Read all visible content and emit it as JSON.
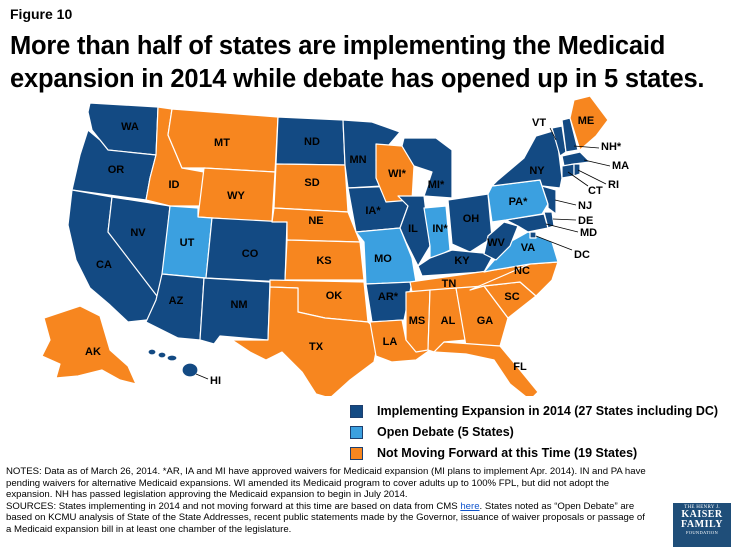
{
  "figure_label": "Figure 10",
  "title": "More than half of states are implementing the Medicaid expansion in 2014 while debate has opened up in 5 states.",
  "colors": {
    "implementing": "#134a83",
    "open_debate": "#3ba0e0",
    "not_moving": "#f7861f",
    "border": "#ffffff",
    "text": "#000000"
  },
  "legend": [
    {
      "label": "Implementing Expansion in 2014 (27 States including DC)",
      "color": "#134a83"
    },
    {
      "label": "Open Debate (5 States)",
      "color": "#3ba0e0"
    },
    {
      "label": "Not Moving Forward at this Time (19 States)",
      "color": "#f7861f"
    }
  ],
  "states": {
    "WA": "WA",
    "OR": "OR",
    "CA": "CA",
    "NV": "NV",
    "ID": "ID",
    "MT": "MT",
    "WY": "WY",
    "UT": "UT",
    "AZ": "AZ",
    "CO": "CO",
    "NM": "NM",
    "ND": "ND",
    "SD": "SD",
    "NE": "NE",
    "KS": "KS",
    "OK": "OK",
    "TX": "TX",
    "MN": "MN",
    "IA": "IA*",
    "MO": "MO",
    "AR": "AR*",
    "LA": "LA",
    "WI": "WI*",
    "IL": "IL",
    "MI": "MI*",
    "IN": "IN*",
    "OH": "OH",
    "KY": "KY",
    "TN": "TN",
    "MS": "MS",
    "AL": "AL",
    "GA": "GA",
    "FL": "FL",
    "SC": "SC",
    "NC": "NC",
    "VA": "VA",
    "WV": "WV",
    "PA": "PA*",
    "NY": "NY",
    "VT": "VT",
    "ME": "ME",
    "NH": "NH*",
    "MA": "MA",
    "RI": "RI",
    "CT": "CT",
    "NJ": "NJ",
    "DE": "DE",
    "MD": "MD",
    "DC": "DC",
    "AK": "AK",
    "HI": "HI"
  },
  "notes": {
    "line1": "NOTES: Data as of March 26, 2014. *AR, IA and MI have approved waivers for Medicaid expansion (MI plans to implement Apr. 2014). IN and PA have pending waivers for alternative Medicaid expansions. WI amended its Medicaid program to cover adults up to 100% FPL, but did not adopt the expansion. NH has passed legislation approving the Medicaid expansion to begin in July 2014.",
    "sources_a": "SOURCES: States implementing in 2014 and not moving forward at this time are based on data from CMS ",
    "sources_link": "here",
    "sources_b": ". States noted as “Open Debate” are based on KCMU analysis of State of the State Addresses, recent public statements made by the Governor, issuance of waiver proposals or passage of a Medicaid expansion bill in at least one chamber of the legislature."
  },
  "logo": {
    "line1": "THE HENRY J.",
    "line2": "KAISER",
    "line3": "FAMILY",
    "line4": "FOUNDATION"
  }
}
